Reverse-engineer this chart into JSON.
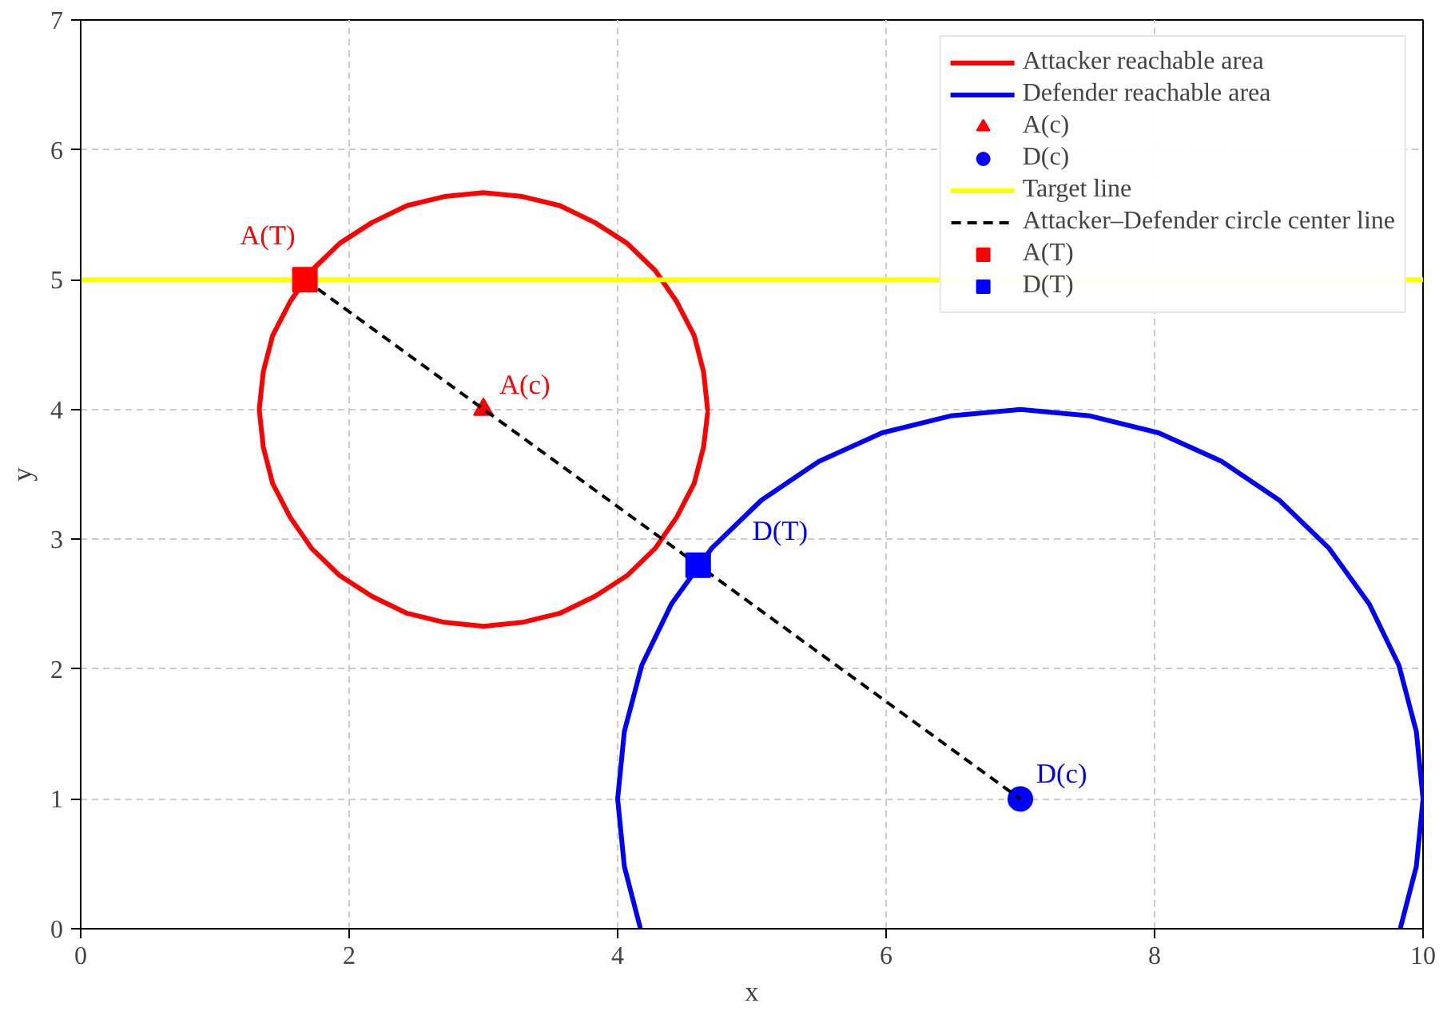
{
  "chart_data": {
    "type": "line",
    "xlabel": "x",
    "ylabel": "y",
    "xlim": [
      0,
      10
    ],
    "ylim": [
      0,
      7
    ],
    "xticks": [
      0,
      2,
      4,
      6,
      8,
      10
    ],
    "yticks": [
      0,
      1,
      2,
      3,
      4,
      5,
      6,
      7
    ],
    "grid": true,
    "legend": "top right",
    "series": [
      {
        "name": "Attacker reachable area",
        "color": "#ff0000",
        "x": [
          4.67,
          4.64,
          4.57,
          4.44,
          4.28,
          4.07,
          3.83,
          3.57,
          3.29,
          3.0,
          2.71,
          2.43,
          2.17,
          1.93,
          1.72,
          1.56,
          1.43,
          1.36,
          1.33,
          1.36,
          1.43,
          1.56,
          1.72,
          1.93,
          2.17,
          2.43,
          2.71,
          3.0,
          3.29,
          3.57,
          3.83,
          4.07,
          4.28,
          4.44,
          4.57,
          4.64,
          4.67
        ],
        "values": [
          4,
          4.29,
          4.57,
          4.83,
          5.07,
          5.28,
          5.44,
          5.57,
          5.64,
          5.67,
          5.64,
          5.57,
          5.44,
          5.28,
          5.07,
          4.83,
          4.57,
          4.29,
          4,
          3.71,
          3.43,
          3.17,
          2.93,
          2.72,
          2.56,
          2.43,
          2.36,
          2.33,
          2.36,
          2.43,
          2.56,
          2.72,
          2.93,
          3.17,
          3.43,
          3.71,
          3.97
        ]
      },
      {
        "name": "Defender reachable area",
        "color": "#0000ff",
        "x": [
          9.83,
          9.95,
          10,
          9.95,
          9.82,
          9.6,
          9.3,
          8.93,
          8.5,
          8.03,
          7.52,
          7,
          6.48,
          5.97,
          5.5,
          5.07,
          4.7,
          4.4,
          4.18,
          4.05,
          4,
          4.05,
          4.17
        ],
        "values": [
          0,
          0.48,
          1,
          1.52,
          2.03,
          2.5,
          2.93,
          3.3,
          3.6,
          3.82,
          3.95,
          4,
          3.95,
          3.82,
          3.6,
          3.3,
          2.93,
          2.5,
          2.03,
          1.52,
          1,
          0.48,
          0
        ]
      },
      {
        "name": "A(c)",
        "type": "scatter",
        "marker": "triangle",
        "color": "#ff0000",
        "x": [
          3
        ],
        "values": [
          4
        ]
      },
      {
        "name": "D(c)",
        "type": "scatter",
        "marker": "circle",
        "color": "#0000ff",
        "x": [
          7
        ],
        "values": [
          1
        ]
      },
      {
        "name": "Target line",
        "color": "#ffff00",
        "x": [
          0,
          10
        ],
        "values": [
          5,
          5
        ]
      },
      {
        "name": "Attacker–Defender circle center line",
        "line_style": "dashed",
        "color": "#000000",
        "x": [
          1.67,
          7
        ],
        "values": [
          5,
          1
        ]
      },
      {
        "name": "A(T)",
        "type": "scatter",
        "marker": "square",
        "color": "#ff0000",
        "x": [
          1.67
        ],
        "values": [
          5
        ]
      },
      {
        "name": "D(T)",
        "type": "scatter",
        "marker": "square",
        "color": "#0000ff",
        "x": [
          4.6
        ],
        "values": [
          2.8
        ]
      }
    ],
    "annotations": [
      {
        "text": "A(T)",
        "x": 1.67,
        "y": 5
      },
      {
        "text": "A(c)",
        "x": 3,
        "y": 4
      },
      {
        "text": "D(T)",
        "x": 4.6,
        "y": 2.8
      },
      {
        "text": "D(c)",
        "x": 7,
        "y": 1
      }
    ]
  }
}
